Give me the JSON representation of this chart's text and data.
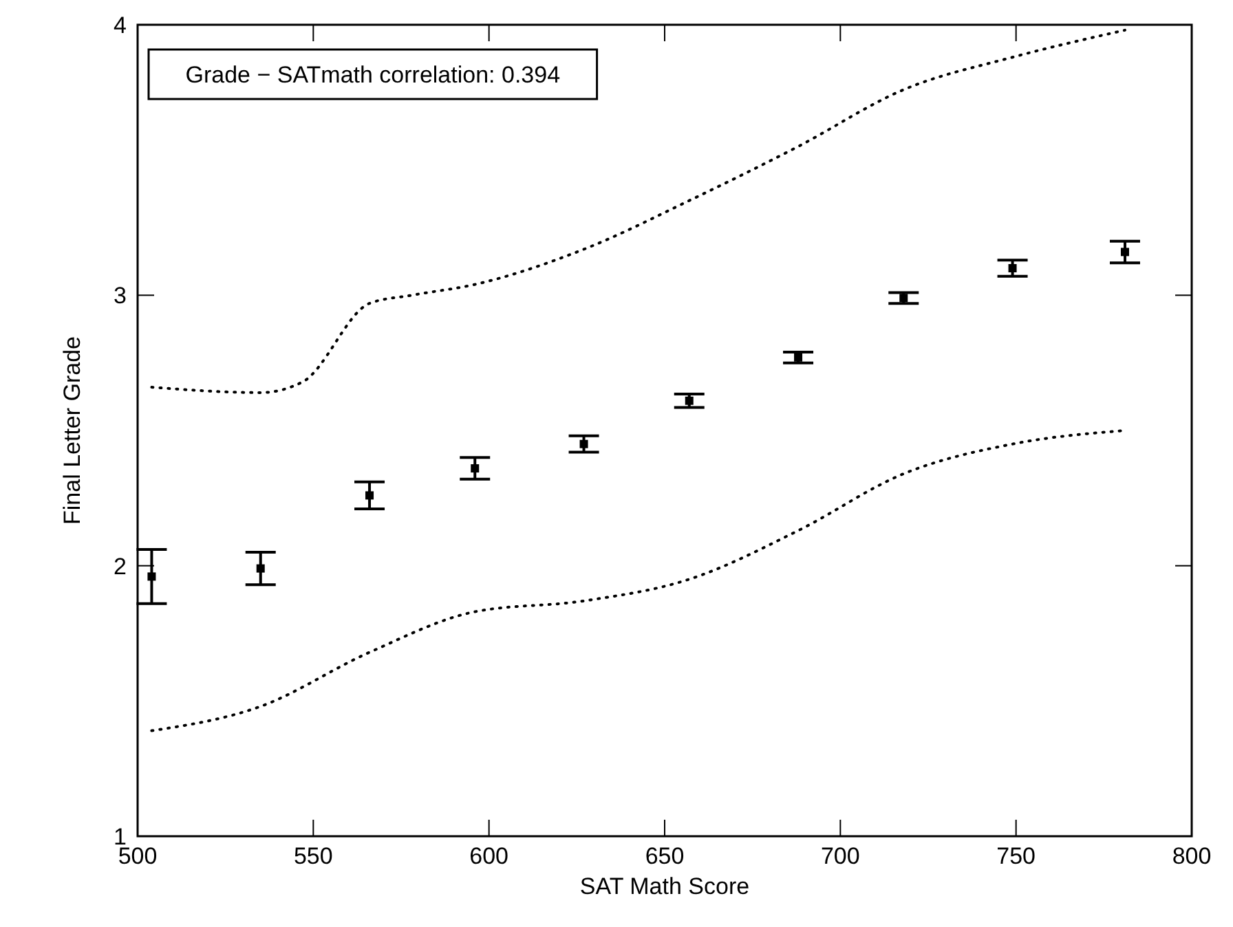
{
  "chart_data": {
    "type": "scatter",
    "xlabel": "SAT Math Score",
    "ylabel": "Final Letter Grade",
    "annotations": [
      "Grade − SATmath correlation: 0.394"
    ],
    "xlim": [
      500,
      800
    ],
    "ylim": [
      1,
      4
    ],
    "xticks": [
      500,
      550,
      600,
      650,
      700,
      750,
      800
    ],
    "yticks": [
      1,
      2,
      3,
      4
    ],
    "grid": false,
    "x": [
      504,
      535,
      566,
      596,
      627,
      657,
      688,
      718,
      749,
      781
    ],
    "series": [
      {
        "marker": "square",
        "color": "#000000",
        "values": [
          1.96,
          1.99,
          2.26,
          2.36,
          2.45,
          2.61,
          2.77,
          2.99,
          3.1,
          3.16
        ],
        "errors": [
          0.1,
          0.06,
          0.05,
          0.04,
          0.03,
          0.025,
          0.02,
          0.02,
          0.03,
          0.04
        ]
      },
      {
        "type": "line",
        "color": "#000000",
        "line_style": "dotted",
        "x": [
          504,
          535,
          547,
          566,
          578,
          596,
          627,
          657,
          688,
          718,
          749,
          781
        ],
        "values": [
          2.66,
          2.64,
          2.68,
          2.97,
          3.0,
          3.04,
          3.17,
          3.35,
          3.55,
          3.76,
          3.88,
          3.98
        ]
      },
      {
        "type": "line",
        "color": "#000000",
        "line_style": "dotted",
        "x": [
          504,
          535,
          566,
          596,
          627,
          657,
          688,
          718,
          749,
          781
        ],
        "values": [
          1.39,
          1.48,
          1.68,
          1.83,
          1.87,
          1.95,
          2.13,
          2.34,
          2.45,
          2.5
        ]
      }
    ]
  }
}
